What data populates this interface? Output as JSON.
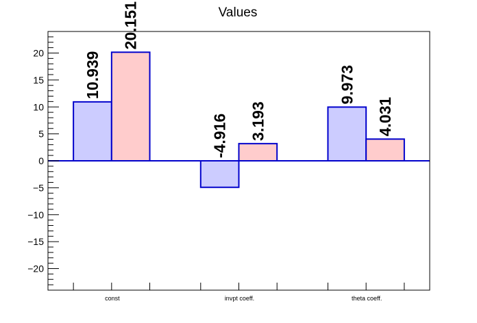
{
  "chart_data": {
    "type": "bar",
    "title": "Values",
    "xlabel": "",
    "ylabel": "",
    "categories": [
      "const",
      "invpt coeff.",
      "theta coeff."
    ],
    "series": [
      {
        "values": [
          10.939,
          -4.916,
          9.973
        ],
        "color": "#ccccff"
      },
      {
        "values": [
          20.151,
          3.193,
          4.031
        ],
        "color": "#ffcccc"
      }
    ],
    "value_labels": [
      [
        "10.939",
        "-4.916",
        "9.973"
      ],
      [
        "20.151",
        "3.193",
        "4.031"
      ]
    ],
    "ylim": [
      -24,
      24
    ],
    "yticks": [
      -20,
      -15,
      -10,
      -5,
      0,
      5,
      10,
      15,
      20
    ],
    "ytick_labels": [
      "−20",
      "−15",
      "−10",
      "−5",
      "0",
      "5",
      "10",
      "15",
      "20"
    ],
    "bar_edge_color": "#0000cc",
    "zero_line_color": "#0000cc",
    "grid": false,
    "legend": false
  }
}
